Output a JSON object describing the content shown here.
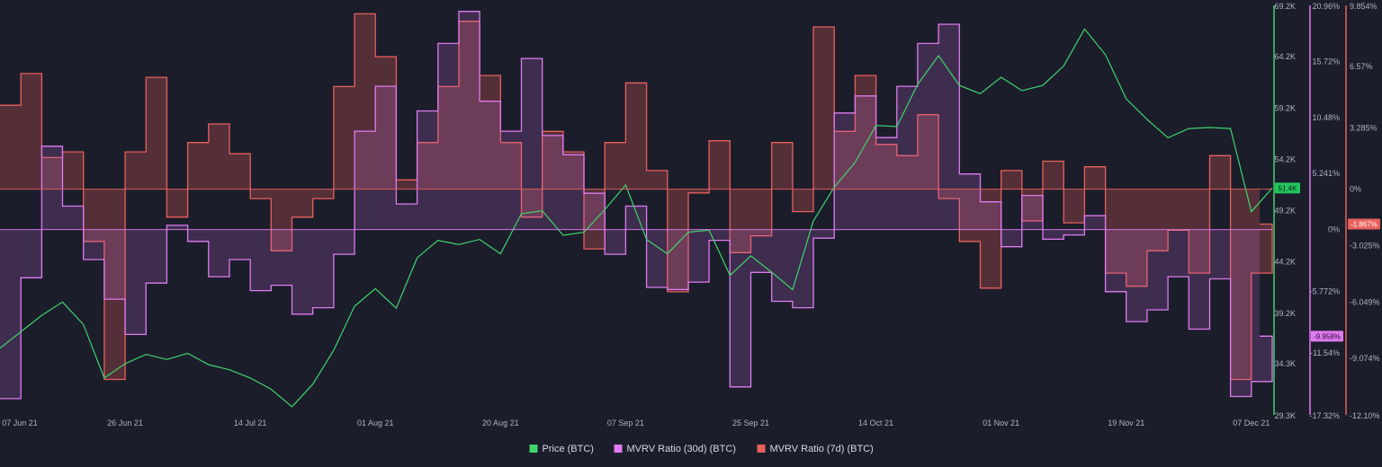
{
  "chart_data": {
    "type": "line",
    "title": "",
    "x_start": "2021-06-07",
    "x_end": "2021-12-07",
    "x_tick_labels": [
      "07 Jun 21",
      "26 Jun 21",
      "14 Jul 21",
      "01 Aug 21",
      "20 Aug 21",
      "07 Sep 21",
      "25 Sep 21",
      "14 Oct 21",
      "01 Nov 21",
      "19 Nov 21",
      "07 Dec 21"
    ],
    "axes": {
      "price": {
        "name": "Price (BTC)",
        "color": "#3fd46b",
        "ylim": [
          29300,
          69200
        ],
        "tick_labels": [
          "69.2K",
          "64.2K",
          "59.2K",
          "54.2K",
          "49.2K",
          "44.2K",
          "39.2K",
          "34.3K",
          "29.3K"
        ],
        "tick_values": [
          69200,
          64200,
          59200,
          54200,
          49200,
          44200,
          39200,
          34300,
          29300
        ],
        "current_label": "51.4K"
      },
      "mvrv30": {
        "name": "MVRV Ratio (30d) (BTC)",
        "color": "#e07bf0",
        "ylim": [
          -17.32,
          20.96
        ],
        "tick_labels": [
          "20.96%",
          "15.72%",
          "10.48%",
          "5.241%",
          "0%",
          "-5.772%",
          "-11.54%",
          "-17.32%"
        ],
        "tick_values": [
          20.96,
          15.72,
          10.48,
          5.241,
          0,
          -5.772,
          -11.54,
          -17.32
        ],
        "current_label": "-9.958%"
      },
      "mvrv7": {
        "name": "MVRV Ratio (7d) (BTC)",
        "color": "#e8605a",
        "ylim": [
          -12.1,
          9.854
        ],
        "tick_labels": [
          "9.854%",
          "6.57%",
          "3.285%",
          "0%",
          "-3.025%",
          "-6.049%",
          "-9.074%",
          "-12.10%"
        ],
        "tick_values": [
          9.854,
          6.57,
          3.285,
          0,
          -3.025,
          -6.049,
          -9.074,
          -12.1
        ],
        "current_label": "-1.867%"
      }
    },
    "series": [
      {
        "name": "Price (BTC)",
        "axis": "price",
        "x": [
          "2021-06-07",
          "2021-06-10",
          "2021-06-13",
          "2021-06-16",
          "2021-06-19",
          "2021-06-22",
          "2021-06-25",
          "2021-06-28",
          "2021-07-01",
          "2021-07-04",
          "2021-07-07",
          "2021-07-10",
          "2021-07-13",
          "2021-07-16",
          "2021-07-19",
          "2021-07-22",
          "2021-07-25",
          "2021-07-28",
          "2021-07-31",
          "2021-08-03",
          "2021-08-06",
          "2021-08-09",
          "2021-08-12",
          "2021-08-15",
          "2021-08-18",
          "2021-08-21",
          "2021-08-24",
          "2021-08-27",
          "2021-08-30",
          "2021-09-02",
          "2021-09-05",
          "2021-09-08",
          "2021-09-11",
          "2021-09-14",
          "2021-09-17",
          "2021-09-20",
          "2021-09-23",
          "2021-09-26",
          "2021-09-29",
          "2021-10-02",
          "2021-10-05",
          "2021-10-08",
          "2021-10-11",
          "2021-10-14",
          "2021-10-17",
          "2021-10-20",
          "2021-10-23",
          "2021-10-26",
          "2021-10-29",
          "2021-11-01",
          "2021-11-04",
          "2021-11-07",
          "2021-11-10",
          "2021-11-13",
          "2021-11-16",
          "2021-11-19",
          "2021-11-22",
          "2021-11-25",
          "2021-11-28",
          "2021-12-01",
          "2021-12-04",
          "2021-12-07"
        ],
        "values": [
          35800,
          37400,
          39000,
          40300,
          38100,
          32900,
          34300,
          35200,
          34700,
          35300,
          34200,
          33700,
          32900,
          31800,
          30100,
          32300,
          35600,
          39900,
          41600,
          39700,
          44600,
          46300,
          45900,
          46400,
          45000,
          48900,
          49200,
          46800,
          47100,
          49300,
          51700,
          46400,
          45000,
          47100,
          47300,
          42900,
          44800,
          43200,
          41500,
          48200,
          51500,
          53900,
          57500,
          57400,
          61500,
          64300,
          61400,
          60600,
          62200,
          60900,
          61400,
          63300,
          66900,
          64400,
          60100,
          58100,
          56300,
          57200,
          57300,
          57200,
          49100,
          51400
        ]
      },
      {
        "name": "MVRV Ratio (30d) (BTC)",
        "axis": "mvrv30",
        "x": [
          "2021-06-07",
          "2021-06-10",
          "2021-06-13",
          "2021-06-16",
          "2021-06-19",
          "2021-06-22",
          "2021-06-25",
          "2021-06-28",
          "2021-07-01",
          "2021-07-04",
          "2021-07-07",
          "2021-07-10",
          "2021-07-13",
          "2021-07-16",
          "2021-07-19",
          "2021-07-22",
          "2021-07-25",
          "2021-07-28",
          "2021-07-31",
          "2021-08-03",
          "2021-08-06",
          "2021-08-09",
          "2021-08-12",
          "2021-08-15",
          "2021-08-18",
          "2021-08-21",
          "2021-08-24",
          "2021-08-27",
          "2021-08-30",
          "2021-09-02",
          "2021-09-05",
          "2021-09-08",
          "2021-09-11",
          "2021-09-14",
          "2021-09-17",
          "2021-09-20",
          "2021-09-23",
          "2021-09-26",
          "2021-09-29",
          "2021-10-02",
          "2021-10-05",
          "2021-10-08",
          "2021-10-11",
          "2021-10-14",
          "2021-10-17",
          "2021-10-20",
          "2021-10-23",
          "2021-10-26",
          "2021-10-29",
          "2021-11-01",
          "2021-11-04",
          "2021-11-07",
          "2021-11-10",
          "2021-11-13",
          "2021-11-16",
          "2021-11-19",
          "2021-11-22",
          "2021-11-25",
          "2021-11-28",
          "2021-12-01",
          "2021-12-04",
          "2021-12-07"
        ],
        "values": [
          -15.8,
          -4.5,
          7.8,
          2.2,
          -2.8,
          -6.5,
          -9.8,
          -5.0,
          0.4,
          -1.1,
          -4.4,
          -2.8,
          -5.7,
          -5.2,
          -7.9,
          -7.3,
          -2.3,
          9.2,
          13.4,
          2.4,
          11.1,
          17.4,
          20.4,
          12.0,
          9.2,
          16.0,
          8.8,
          7.0,
          3.4,
          -2.3,
          2.2,
          -5.4,
          -5.6,
          -4.9,
          -1.0,
          -14.7,
          -4.0,
          -6.7,
          -7.3,
          -0.8,
          10.9,
          12.5,
          8.6,
          13.4,
          17.4,
          19.2,
          5.2,
          2.6,
          -1.6,
          3.2,
          -0.9,
          -0.5,
          1.3,
          -5.8,
          -8.6,
          -7.5,
          -4.4,
          -9.3,
          -4.6,
          -15.6,
          -14.2,
          -9.96
        ]
      },
      {
        "name": "MVRV Ratio (7d) (BTC)",
        "axis": "mvrv7",
        "x": [
          "2021-06-07",
          "2021-06-10",
          "2021-06-13",
          "2021-06-16",
          "2021-06-19",
          "2021-06-22",
          "2021-06-25",
          "2021-06-28",
          "2021-07-01",
          "2021-07-04",
          "2021-07-07",
          "2021-07-10",
          "2021-07-13",
          "2021-07-16",
          "2021-07-19",
          "2021-07-22",
          "2021-07-25",
          "2021-07-28",
          "2021-07-31",
          "2021-08-03",
          "2021-08-06",
          "2021-08-09",
          "2021-08-12",
          "2021-08-15",
          "2021-08-18",
          "2021-08-21",
          "2021-08-24",
          "2021-08-27",
          "2021-08-30",
          "2021-09-02",
          "2021-09-05",
          "2021-09-08",
          "2021-09-11",
          "2021-09-14",
          "2021-09-17",
          "2021-09-20",
          "2021-09-23",
          "2021-09-26",
          "2021-09-29",
          "2021-10-02",
          "2021-10-05",
          "2021-10-08",
          "2021-10-11",
          "2021-10-14",
          "2021-10-17",
          "2021-10-20",
          "2021-10-23",
          "2021-10-26",
          "2021-10-29",
          "2021-11-01",
          "2021-11-04",
          "2021-11-07",
          "2021-11-10",
          "2021-11-13",
          "2021-11-16",
          "2021-11-19",
          "2021-11-22",
          "2021-11-25",
          "2021-11-28",
          "2021-12-01",
          "2021-12-04",
          "2021-12-07"
        ],
        "values": [
          4.5,
          6.2,
          1.7,
          2.0,
          -2.8,
          -10.2,
          2.0,
          6.0,
          -1.5,
          2.5,
          3.5,
          1.9,
          -0.5,
          -3.3,
          -1.5,
          -0.5,
          5.5,
          9.4,
          7.1,
          0.5,
          2.5,
          5.5,
          9.0,
          6.1,
          2.5,
          -1.5,
          3.1,
          2.0,
          -3.2,
          2.5,
          5.7,
          1.0,
          -5.5,
          -0.2,
          2.6,
          -3.4,
          -2.5,
          2.5,
          -1.2,
          8.7,
          3.1,
          6.1,
          2.4,
          1.8,
          4.0,
          -0.5,
          -2.8,
          -5.3,
          1.0,
          -1.7,
          1.5,
          -1.8,
          1.2,
          -4.5,
          -5.2,
          -3.3,
          -2.2,
          -4.5,
          1.8,
          -10.2,
          -4.5,
          -1.867
        ]
      }
    ],
    "legend": {
      "placement": "bottom-center",
      "items": [
        {
          "label": "Price (BTC)",
          "color": "#3fd46b"
        },
        {
          "label": "MVRV Ratio (30d) (BTC)",
          "color": "#e07bf0"
        },
        {
          "label": "MVRV Ratio (7d) (BTC)",
          "color": "#e8605a"
        }
      ]
    },
    "grid": false
  }
}
